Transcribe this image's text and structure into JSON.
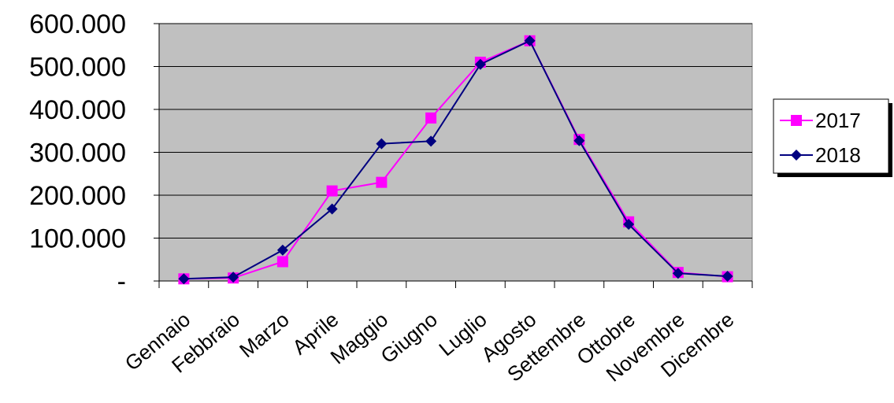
{
  "chart_data": {
    "type": "line",
    "title": "",
    "xlabel": "",
    "ylabel": "",
    "categories": [
      "Gennaio",
      "Febbraio",
      "Marzo",
      "Aprile",
      "Maggio",
      "Giugno",
      "Luglio",
      "Agosto",
      "Settembre",
      "Ottobre",
      "Novembre",
      "Dicembre"
    ],
    "series": [
      {
        "name": "2017",
        "color": "#ff00ff",
        "marker": "square",
        "values": [
          5000,
          7000,
          45000,
          210000,
          230000,
          380000,
          510000,
          560000,
          330000,
          138000,
          20000,
          10000
        ]
      },
      {
        "name": "2018",
        "color": "#000080",
        "marker": "diamond",
        "values": [
          5000,
          9000,
          72000,
          168000,
          320000,
          326000,
          505000,
          560000,
          327000,
          132000,
          18000,
          11000
        ]
      }
    ],
    "ylim": [
      0,
      600000
    ],
    "yticks": [
      {
        "value": 0,
        "label": "-"
      },
      {
        "value": 100000,
        "label": "100.000"
      },
      {
        "value": 200000,
        "label": "200.000"
      },
      {
        "value": 300000,
        "label": "300.000"
      },
      {
        "value": 400000,
        "label": "400.000"
      },
      {
        "value": 500000,
        "label": "500.000"
      },
      {
        "value": 600000,
        "label": "600.000"
      }
    ],
    "grid": true,
    "plot_background": "#c0c0c0",
    "legend_position": "right"
  }
}
